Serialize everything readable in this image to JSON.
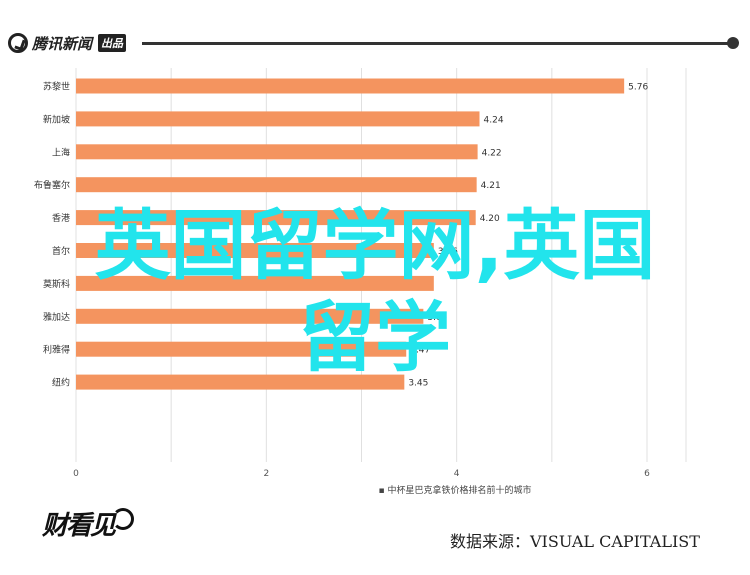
{
  "header": {
    "logo_text": "腾讯新闻",
    "logo_badge": "出品"
  },
  "overlay_title": {
    "line1": "英国留学网,英国",
    "line2": "留学"
  },
  "chart_data": {
    "type": "bar",
    "orientation": "horizontal",
    "categories": [
      "苏黎世",
      "新加坡",
      "上海",
      "布鲁塞尔",
      "香港",
      "首尔",
      "莫斯科",
      "雅加达",
      "利雅得",
      "纽约"
    ],
    "values": [
      5.76,
      4.24,
      4.22,
      4.21,
      4.2,
      3.76,
      3.76,
      3.65,
      3.47,
      3.45
    ],
    "value_labels": [
      "5.76",
      "4.24",
      "4.22",
      "4.21",
      "4.20",
      "3.76",
      "",
      "3.65",
      "3.47",
      "3.45"
    ],
    "xlabel": "▪ 中杯星巴克拿铁价格排名前十的城市",
    "xlim": [
      0,
      6.5
    ],
    "xticks": [
      0,
      2,
      4,
      6
    ],
    "grid": true,
    "bar_color": "#f4945f"
  },
  "footer": {
    "logo_text": "财看见",
    "source": "数据来源：VISUAL CAPITALIST"
  }
}
